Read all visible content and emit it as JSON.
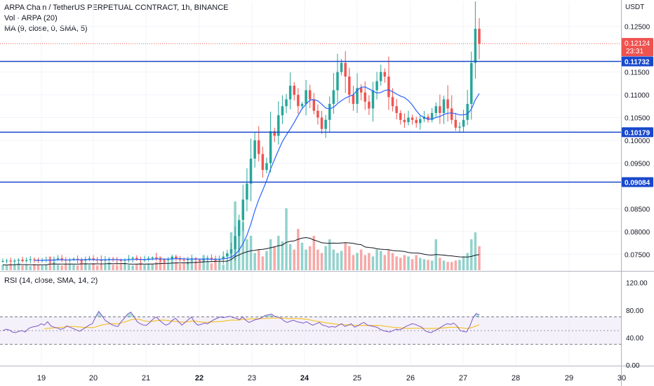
{
  "symbol_title": "ARPA Chain / TetherUS PERPETUAL CONTRACT, 1h, BINANCE",
  "legend_volume": "Vol · ARPA (20)",
  "legend_ma": "MA (9, close, 0, SMA, 5)",
  "legend_rsi": "RSI (14, close, SMA, 14, 2)",
  "price_unit": "USDT",
  "price_axis": {
    "min": 0.0715,
    "max": 0.1305,
    "ticks": [
      "0.12500",
      "0.11500",
      "0.11000",
      "0.10500",
      "0.10000",
      "0.09500",
      "0.08500",
      "0.08000",
      "0.07500"
    ]
  },
  "rsi_axis": {
    "min": 0,
    "max": 135,
    "ticks": [
      "120.00",
      "80.00",
      "40.00",
      "0.00"
    ],
    "upper_band": 70,
    "lower_band": 30,
    "mid": 50
  },
  "time_axis": {
    "labels": [
      "19",
      "20",
      "21",
      "22",
      "23",
      "24",
      "25",
      "26",
      "27",
      "28",
      "29",
      "30"
    ],
    "bold": [
      "22",
      "24"
    ]
  },
  "last_price": {
    "value": "0.12124",
    "countdown": "23:31"
  },
  "horizontal_levels": [
    "0.11732",
    "0.10179",
    "0.09084"
  ],
  "colors": {
    "up": "#26a69a",
    "down": "#ef5350",
    "ma": "#2962ff",
    "level": "#1848cc",
    "rsi": "#7e57c2",
    "rsi_ma": "#f5c32c",
    "vol_ma": "#131722"
  },
  "chart_data": {
    "type": "candlestick",
    "price_path": [
      0.0735,
      0.0736,
      0.0734,
      0.0736,
      0.0738,
      0.0735,
      0.0737,
      0.0739,
      0.0738,
      0.0736,
      0.0737,
      0.0738,
      0.0736,
      0.0739,
      0.0741,
      0.0738,
      0.0736,
      0.0738,
      0.074,
      0.0737,
      0.0736,
      0.0739,
      0.0741,
      0.0738,
      0.0737,
      0.0736,
      0.0738,
      0.074,
      0.0739,
      0.0737,
      0.0736,
      0.0738,
      0.074,
      0.0742,
      0.0739,
      0.0737,
      0.0738,
      0.0741,
      0.0743,
      0.074,
      0.0738,
      0.0737,
      0.074,
      0.0745,
      0.0741,
      0.0738,
      0.0737,
      0.0739,
      0.0741,
      0.0738,
      0.0737,
      0.0739,
      0.0742,
      0.074,
      0.0738,
      0.0739,
      0.0745,
      0.0752,
      0.0761,
      0.079,
      0.0825,
      0.087,
      0.0905,
      0.096,
      0.1,
      0.097,
      0.0935,
      0.095,
      0.102,
      0.101,
      0.1055,
      0.1075,
      0.109,
      0.112,
      0.11,
      0.1075,
      0.108,
      0.111,
      0.109,
      0.1065,
      0.105,
      0.1025,
      0.1045,
      0.108,
      0.111,
      0.115,
      0.117,
      0.114,
      0.11,
      0.108,
      0.1115,
      0.1105,
      0.1085,
      0.107,
      0.111,
      0.113,
      0.115,
      0.114,
      0.1095,
      0.1075,
      0.106,
      0.1045,
      0.104,
      0.105,
      0.1045,
      0.1038,
      0.1047,
      0.1052,
      0.1045,
      0.106,
      0.1075,
      0.106,
      0.109,
      0.107,
      0.1045,
      0.1028,
      0.103,
      0.1045,
      0.108,
      0.117,
      0.1245,
      0.1212
    ],
    "volume_profile": [
      0.08,
      0.07,
      0.09,
      0.08,
      0.1,
      0.07,
      0.08,
      0.06,
      0.09,
      0.08,
      0.07,
      0.08,
      0.2,
      0.12,
      0.08,
      0.07,
      0.09,
      0.1,
      0.08,
      0.07,
      0.15,
      0.09,
      0.08,
      0.1,
      0.07,
      0.08,
      0.09,
      0.12,
      0.08,
      0.07,
      0.1,
      0.09,
      0.08,
      0.07,
      0.09,
      0.11,
      0.08,
      0.1,
      0.09,
      0.12,
      0.2,
      0.15,
      0.1,
      0.18,
      0.12,
      0.09,
      0.1,
      0.12,
      0.16,
      0.12,
      0.15,
      0.22,
      0.12,
      0.1,
      0.16,
      0.12,
      0.08,
      0.14,
      0.55,
      1.0,
      0.65,
      0.7,
      0.45,
      0.5,
      0.25,
      0.3,
      0.2,
      0.28,
      0.45,
      0.35,
      0.5,
      0.42,
      0.9,
      0.38,
      0.3,
      0.6,
      0.4,
      0.3,
      0.35,
      0.5,
      0.3,
      0.25,
      0.35,
      0.45,
      0.3,
      0.25,
      0.28,
      0.4,
      0.35,
      0.22,
      0.25,
      0.3,
      0.22,
      0.25,
      0.2,
      0.3,
      0.28,
      0.22,
      0.3,
      0.25,
      0.2,
      0.18,
      0.22,
      0.2,
      0.16,
      0.22,
      0.18,
      0.16,
      0.15,
      0.14,
      0.45,
      0.18,
      0.14,
      0.12,
      0.12,
      0.14,
      0.15,
      0.2,
      0.25,
      0.45,
      0.55,
      0.35
    ],
    "rsi_path": [
      50,
      52,
      51,
      48,
      47,
      49,
      50,
      48,
      53,
      55,
      56,
      57,
      60,
      58,
      63,
      57,
      55,
      54,
      52,
      53,
      57,
      55,
      53,
      51,
      49,
      52,
      55,
      58,
      60,
      70,
      78,
      72,
      65,
      62,
      59,
      57,
      56,
      63,
      68,
      74,
      77,
      71,
      63,
      60,
      58,
      58,
      62,
      67,
      70,
      65,
      61,
      58,
      60,
      65,
      68,
      63,
      58,
      62,
      66,
      70,
      62,
      58,
      59,
      61,
      60,
      63,
      66,
      68,
      70,
      69,
      70,
      71,
      69,
      68,
      66,
      70,
      65,
      62,
      64,
      66,
      67,
      69,
      72,
      73,
      74,
      71,
      70,
      68,
      64,
      62,
      64,
      65,
      63,
      62,
      61,
      63,
      60,
      58,
      60,
      62,
      58,
      57,
      55,
      56,
      55,
      58,
      60,
      56,
      58,
      60,
      55,
      57,
      60,
      62,
      58,
      57,
      56,
      55,
      52,
      50,
      49,
      48,
      50,
      52,
      51,
      53,
      56,
      58,
      60,
      59,
      57,
      55,
      50,
      48,
      47,
      50,
      52,
      55,
      58,
      60,
      59,
      61,
      57,
      50,
      49,
      48,
      56,
      68,
      75,
      73
    ]
  }
}
